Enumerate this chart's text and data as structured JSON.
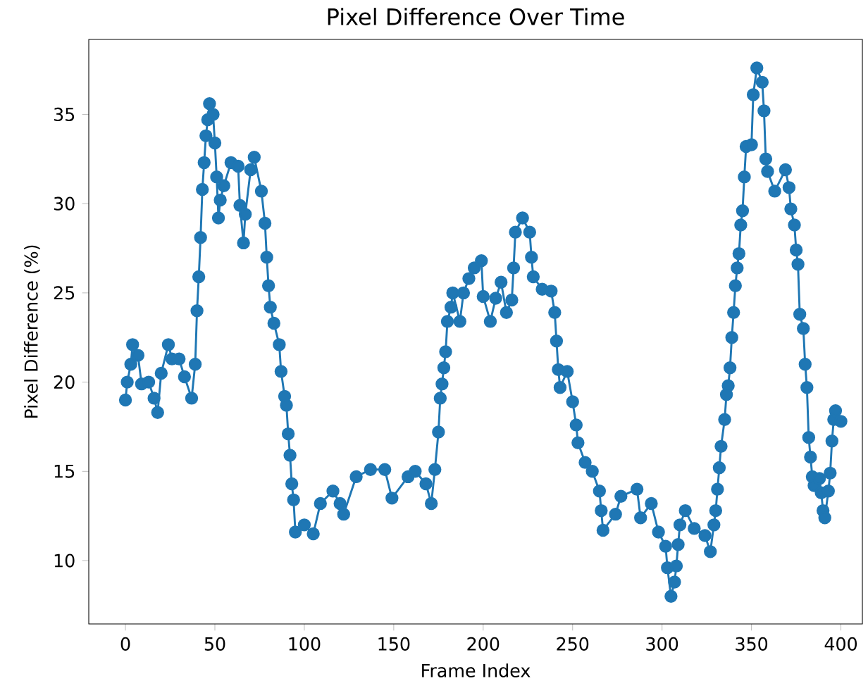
{
  "chart_data": {
    "type": "line",
    "title": "Pixel Difference Over Time",
    "xlabel": "Frame Index",
    "ylabel": "Pixel Difference (%)",
    "marker": "circle",
    "line_style": "solid",
    "xlim": [
      -20.5,
      412
    ],
    "ylim": [
      6.45,
      39.2
    ],
    "xticks": [
      0,
      50,
      100,
      150,
      200,
      250,
      300,
      350,
      400
    ],
    "yticks": [
      10,
      15,
      20,
      25,
      30,
      35
    ],
    "series": [
      {
        "color": "#1f77b4",
        "x": [
          0,
          1,
          3,
          4,
          7,
          9,
          13,
          16,
          18,
          20,
          24,
          26,
          30,
          33,
          37,
          39,
          40,
          41,
          42,
          43,
          44,
          45,
          46,
          47,
          49,
          50,
          51,
          52,
          53,
          55,
          59,
          63,
          64,
          66,
          67,
          70,
          72,
          76,
          78,
          79,
          80,
          81,
          83,
          86,
          87,
          89,
          90,
          91,
          92,
          93,
          94,
          95,
          100,
          105,
          109,
          116,
          120,
          122,
          129,
          137,
          145,
          149,
          158,
          162,
          168,
          171,
          173,
          175,
          176,
          177,
          178,
          179,
          180,
          182,
          183,
          187,
          189,
          192,
          195,
          199,
          200,
          204,
          207,
          210,
          213,
          216,
          217,
          218,
          222,
          226,
          227,
          228,
          233,
          238,
          240,
          241,
          242,
          243,
          247,
          250,
          252,
          253,
          257,
          261,
          265,
          266,
          267,
          274,
          277,
          286,
          288,
          294,
          298,
          302,
          303,
          305,
          307,
          308,
          309,
          310,
          313,
          318,
          324,
          327,
          329,
          330,
          331,
          332,
          333,
          335,
          336,
          337,
          338,
          339,
          340,
          341,
          342,
          343,
          344,
          345,
          346,
          347,
          350,
          351,
          353,
          356,
          357,
          358,
          359,
          363,
          369,
          371,
          372,
          374,
          375,
          376,
          377,
          379,
          380,
          381,
          382,
          383,
          384,
          385,
          388,
          389,
          390,
          391,
          393,
          394,
          395,
          396,
          397,
          400
        ],
        "values": [
          19.0,
          20.0,
          21.0,
          22.1,
          21.5,
          19.9,
          20.0,
          19.1,
          18.3,
          20.5,
          22.1,
          21.3,
          21.3,
          20.3,
          19.1,
          21.0,
          24.0,
          25.9,
          28.1,
          30.8,
          32.3,
          33.8,
          34.7,
          35.6,
          35.0,
          33.4,
          31.5,
          29.2,
          30.2,
          31.0,
          32.3,
          32.1,
          29.9,
          27.8,
          29.4,
          31.9,
          32.6,
          30.7,
          28.9,
          27.0,
          25.4,
          24.2,
          23.3,
          22.1,
          20.6,
          19.2,
          18.7,
          17.1,
          15.9,
          14.3,
          13.4,
          11.6,
          12.0,
          11.5,
          13.2,
          13.9,
          13.2,
          12.6,
          14.7,
          15.1,
          15.1,
          13.5,
          14.7,
          15.0,
          14.3,
          13.2,
          15.1,
          17.2,
          19.1,
          19.9,
          20.8,
          21.7,
          23.4,
          24.2,
          25.0,
          23.4,
          25.0,
          25.8,
          26.4,
          26.8,
          24.8,
          23.4,
          24.7,
          25.6,
          23.9,
          24.6,
          26.4,
          28.4,
          29.2,
          28.4,
          27.0,
          25.9,
          25.2,
          25.1,
          23.9,
          22.3,
          20.7,
          19.7,
          20.6,
          18.9,
          17.6,
          16.6,
          15.5,
          15.0,
          13.9,
          12.8,
          11.7,
          12.6,
          13.6,
          14.0,
          12.4,
          13.2,
          11.6,
          10.8,
          9.6,
          8.0,
          8.8,
          9.7,
          10.9,
          12.0,
          12.8,
          11.8,
          11.4,
          10.5,
          12.0,
          12.8,
          14.0,
          15.2,
          16.4,
          17.9,
          19.3,
          19.8,
          20.8,
          22.5,
          23.9,
          25.4,
          26.4,
          27.2,
          28.8,
          29.6,
          31.5,
          33.2,
          33.3,
          36.1,
          37.6,
          36.8,
          35.2,
          32.5,
          31.8,
          30.7,
          31.9,
          30.9,
          29.7,
          28.8,
          27.4,
          26.6,
          23.8,
          23.0,
          21.0,
          19.7,
          16.9,
          15.8,
          14.7,
          14.2,
          14.6,
          13.8,
          12.8,
          12.4,
          13.9,
          14.9,
          16.7,
          17.9,
          18.4,
          17.8
        ]
      }
    ]
  }
}
